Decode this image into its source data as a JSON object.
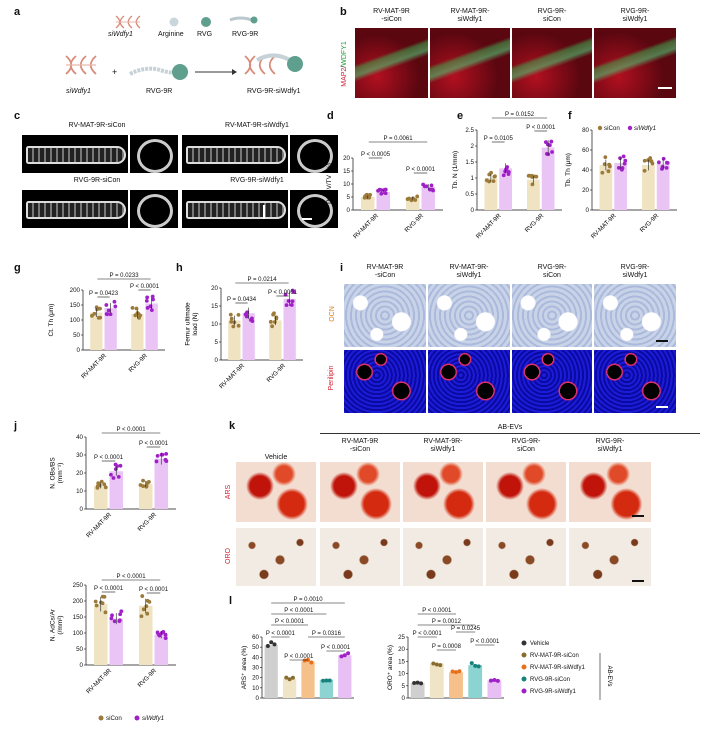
{
  "panels": {
    "a": "a",
    "b": "b",
    "c": "c",
    "d": "d",
    "e": "e",
    "f": "f",
    "g": "g",
    "h": "h",
    "i": "i",
    "j": "j",
    "k": "k",
    "l": "l"
  },
  "a": {
    "legend_sidna": "siWdfy1",
    "legend_arginine": "Arginine",
    "legend_rvg": "RVG",
    "legend_rvg9r": "RVG-9R",
    "label_sidna": "siWdfy1",
    "label_rvg9r": "RVG-9R",
    "label_product": "RVG-9R-siWdfy1",
    "plus": "+"
  },
  "b": {
    "columns": [
      "RV-MAT-9R\n-siCon",
      "RV-MAT-9R-\nsiWdfy1",
      "RVG-9R-\nsiCon",
      "RVG-9R-\nsiWdfy1"
    ],
    "ylabel_a": "MAP2",
    "ylabel_sep": "/",
    "ylabel_b": "WDFY1"
  },
  "c": {
    "labels": [
      "RV-MAT-9R-siCon",
      "RV-MAT-9R-siWdfy1",
      "RVG-9R-siCon",
      "RVG-9R-siWdfy1"
    ]
  },
  "charts": {
    "d": {
      "type": "bar",
      "ylabel": "Tb. BV/TV (%)",
      "yticks": [
        0,
        5,
        10,
        15,
        20
      ],
      "ylim": [
        0,
        20
      ],
      "groups": [
        "RV-MAT-9R",
        "RVG-9R"
      ],
      "series": [
        {
          "name": "siCon",
          "color": "#9b7a3a",
          "values": [
            5.0,
            4.5
          ]
        },
        {
          "name": "siWdfy1",
          "color": "#a020c8",
          "values": [
            6.9,
            8.9
          ]
        }
      ],
      "annotations": [
        "P = 0.0061",
        "P < 0.0005",
        "P < 0.0001"
      ]
    },
    "e": {
      "type": "bar",
      "ylabel": "Tb. N (1/mm)",
      "yticks": [
        0,
        0.5,
        1.0,
        1.5,
        2.0,
        2.5
      ],
      "ylim": [
        0,
        2.5
      ],
      "groups": [
        "RV-MAT-9R",
        "RVG-9R"
      ],
      "series": [
        {
          "name": "siCon",
          "color": "#9b7a3a",
          "values": [
            1.0,
            0.95
          ]
        },
        {
          "name": "siWdfy1",
          "color": "#a020c8",
          "values": [
            1.3,
            1.95
          ]
        }
      ],
      "annotations": [
        "P = 0.0152",
        "P = 0.0105",
        "P < 0.0001"
      ]
    },
    "f": {
      "type": "bar",
      "ylabel": "Tb. Th (μm)",
      "yticks": [
        0,
        20,
        40,
        60,
        80
      ],
      "ylim": [
        0,
        80
      ],
      "groups": [
        "RV-MAT-9R",
        "RVG-9R"
      ],
      "series": [
        {
          "name": "siCon",
          "color": "#9b7a3a",
          "values": [
            45,
            45
          ]
        },
        {
          "name": "siWdfy1",
          "color": "#a020c8",
          "values": [
            47,
            46
          ]
        }
      ],
      "legend": [
        "siCon",
        "siWdfy1"
      ]
    },
    "g": {
      "type": "bar",
      "ylabel": "Ct. Th (μm)",
      "yticks": [
        0,
        50,
        100,
        150,
        200
      ],
      "ylim": [
        0,
        200
      ],
      "groups": [
        "RV-MAT-9R",
        "RVG-9R"
      ],
      "series": [
        {
          "name": "siCon",
          "color": "#9b7a3a",
          "values": [
            125,
            120
          ]
        },
        {
          "name": "siWdfy1",
          "color": "#a020c8",
          "values": [
            140,
            155
          ]
        }
      ],
      "annotations": [
        "P = 0.0233",
        "P = 0.0423",
        "P < 0.0001"
      ]
    },
    "h": {
      "type": "bar",
      "ylabel": "Femur ultimate\nload (N)",
      "yticks": [
        0,
        5,
        10,
        15,
        20
      ],
      "ylim": [
        0,
        20
      ],
      "groups": [
        "RV-MAT-9R",
        "RVG-9R"
      ],
      "series": [
        {
          "name": "siCon",
          "color": "#9b7a3a",
          "values": [
            11,
            11
          ]
        },
        {
          "name": "siWdfy1",
          "color": "#a020c8",
          "values": [
            13,
            17
          ]
        }
      ],
      "annotations": [
        "P = 0.0214",
        "P = 0.0434",
        "P < 0.0001"
      ]
    },
    "j1": {
      "type": "bar",
      "ylabel": "N. OBs/BS\n(mm⁻¹)",
      "yticks": [
        0,
        10,
        20,
        30,
        40
      ],
      "ylim": [
        0,
        40
      ],
      "groups": [
        "RV-MAT-9R",
        "RVG-9R"
      ],
      "series": [
        {
          "name": "siCon",
          "color": "#9b7a3a",
          "values": [
            13,
            14
          ]
        },
        {
          "name": "siWdfy1",
          "color": "#a020c8",
          "values": [
            21,
            28
          ]
        }
      ],
      "annotations": [
        "P < 0.0001",
        "P < 0.0001",
        "P < 0.0001"
      ]
    },
    "j2": {
      "type": "bar",
      "ylabel": "N. AdCs/Ar\n(/mm²)",
      "yticks": [
        0,
        50,
        100,
        150,
        200,
        250
      ],
      "ylim": [
        0,
        250
      ],
      "groups": [
        "RV-MAT-9R",
        "RVG-9R"
      ],
      "series": [
        {
          "name": "siCon",
          "color": "#9b7a3a",
          "values": [
            190,
            185
          ]
        },
        {
          "name": "siWdfy1",
          "color": "#a020c8",
          "values": [
            145,
            95
          ]
        }
      ],
      "annotations": [
        "P < 0.0001",
        "P < 0.0001",
        "P < 0.0001"
      ]
    },
    "l1": {
      "type": "bar",
      "ylabel": "ARS⁺ area (%)",
      "yticks": [
        0,
        10,
        20,
        30,
        40,
        50,
        60
      ],
      "ylim": [
        0,
        60
      ],
      "categories": [
        "Vehicle",
        "RV-MAT-9R-siCon",
        "RV-MAT-9R-siWdfy1",
        "RVG-9R-siCon",
        "RVG-9R-siWdfy1"
      ],
      "values": [
        52,
        19,
        36,
        18,
        42
      ],
      "colors": [
        "#cfcfcf",
        "#efe4c6",
        "#f5c089",
        "#8cd4d2",
        "#e7bff5"
      ],
      "dot_colors": [
        "#333333",
        "#8a6d2e",
        "#e96f1a",
        "#17827c",
        "#a020c8"
      ],
      "annotations": [
        "P = 0.0010",
        "P < 0.0001",
        "P < 0.0001",
        "P < 0.0001",
        "P < 0.0001",
        "P = 0.0316",
        "P < 0.0001"
      ]
    },
    "l2": {
      "type": "bar",
      "ylabel": "ORO⁺ area (%)",
      "yticks": [
        0,
        5,
        10,
        15,
        20,
        25
      ],
      "ylim": [
        0,
        25
      ],
      "categories": [
        "Vehicle",
        "RV-MAT-9R-siCon",
        "RV-MAT-9R-siWdfy1",
        "RVG-9R-siCon",
        "RVG-9R-siWdfy1"
      ],
      "values": [
        6.2,
        14.3,
        10.5,
        13.5,
        7.2
      ],
      "colors": [
        "#cfcfcf",
        "#efe4c6",
        "#f5c089",
        "#8cd4d2",
        "#e7bff5"
      ],
      "dot_colors": [
        "#333333",
        "#8a6d2e",
        "#e96f1a",
        "#17827c",
        "#a020c8"
      ],
      "annotations": [
        "P < 0.0001",
        "P = 0.0012",
        "P < 0.0001",
        "P = 0.0245",
        "P = 0.0008",
        "P < 0.0001"
      ]
    }
  },
  "i": {
    "columns": [
      "RV-MAT-9R\n-siCon",
      "RV-MAT-9R-\nsiWdfy1",
      "RVG-9R-\nsiCon",
      "RVG-9R-\nsiWdfy1"
    ],
    "row1": "OCN",
    "row2": "Perilipin"
  },
  "j_legend": [
    "siCon",
    "siWdfy1"
  ],
  "k": {
    "header": "AB-EVs",
    "columns": [
      "Vehicle",
      "RV-MAT-9R\n-siCon",
      "RV-MAT-9R-\nsiWdfy1",
      "RVG-9R-\nsiCon",
      "RVG-9R-\nsiWdfy1"
    ],
    "row1": "ARS",
    "row2": "ORO"
  },
  "l_legend": {
    "items": [
      "Vehicle",
      "RV-MAT-9R-siCon",
      "RV-MAT-9R-siWdfy1",
      "RVG-9R-siCon",
      "RVG-9R-siWdfy1"
    ],
    "bracket": "AB-EVs"
  }
}
